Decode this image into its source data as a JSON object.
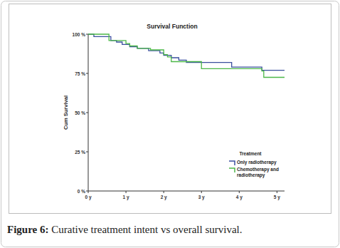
{
  "chart_data": {
    "type": "line",
    "title": "Survival Function",
    "y_label": "Cum Survival",
    "legend_title": "Treatment",
    "caption": "Figure 6: Curative treatment intent vs overall survival.",
    "line_style": "step",
    "legend": "lower right",
    "xlim": [
      0,
      5.2
    ],
    "ylim": [
      0,
      100
    ],
    "xticks": [
      {
        "value": 0,
        "label": "0 y"
      },
      {
        "value": 1,
        "label": "1 y"
      },
      {
        "value": 2,
        "label": "2 y"
      },
      {
        "value": 3,
        "label": "3 y"
      },
      {
        "value": 4,
        "label": "4 y"
      },
      {
        "value": 5,
        "label": "5 y"
      }
    ],
    "yticks": [
      {
        "value": 0,
        "label": "0 %"
      },
      {
        "value": 25,
        "label": "25 %"
      },
      {
        "value": 50,
        "label": "50 %"
      },
      {
        "value": 75,
        "label": "75 %"
      },
      {
        "value": 100,
        "label": "100 %"
      }
    ],
    "series": [
      {
        "name": "Only radiotherapy",
        "color": "#3a4f9e",
        "x": [
          0,
          0.15,
          0.6,
          0.75,
          0.9,
          1.1,
          1.3,
          1.6,
          1.9,
          2.0,
          2.2,
          2.4,
          2.6,
          3.8,
          4.6,
          5.2
        ],
        "values": [
          100,
          98.5,
          96,
          95,
          93.5,
          92,
          91,
          89.5,
          88,
          86.5,
          85,
          83.5,
          82,
          79,
          77,
          77
        ]
      },
      {
        "name": "Chemotherapy and radiotherapy",
        "color": "#4cb848",
        "x": [
          0,
          0.55,
          1.0,
          1.1,
          1.3,
          1.65,
          2.0,
          2.1,
          2.2,
          3.0,
          4.6,
          4.65,
          5.2
        ],
        "values": [
          100,
          96,
          94,
          92.5,
          91,
          90,
          87,
          85.5,
          82.5,
          78,
          76.5,
          72.5,
          72.5
        ]
      }
    ]
  }
}
